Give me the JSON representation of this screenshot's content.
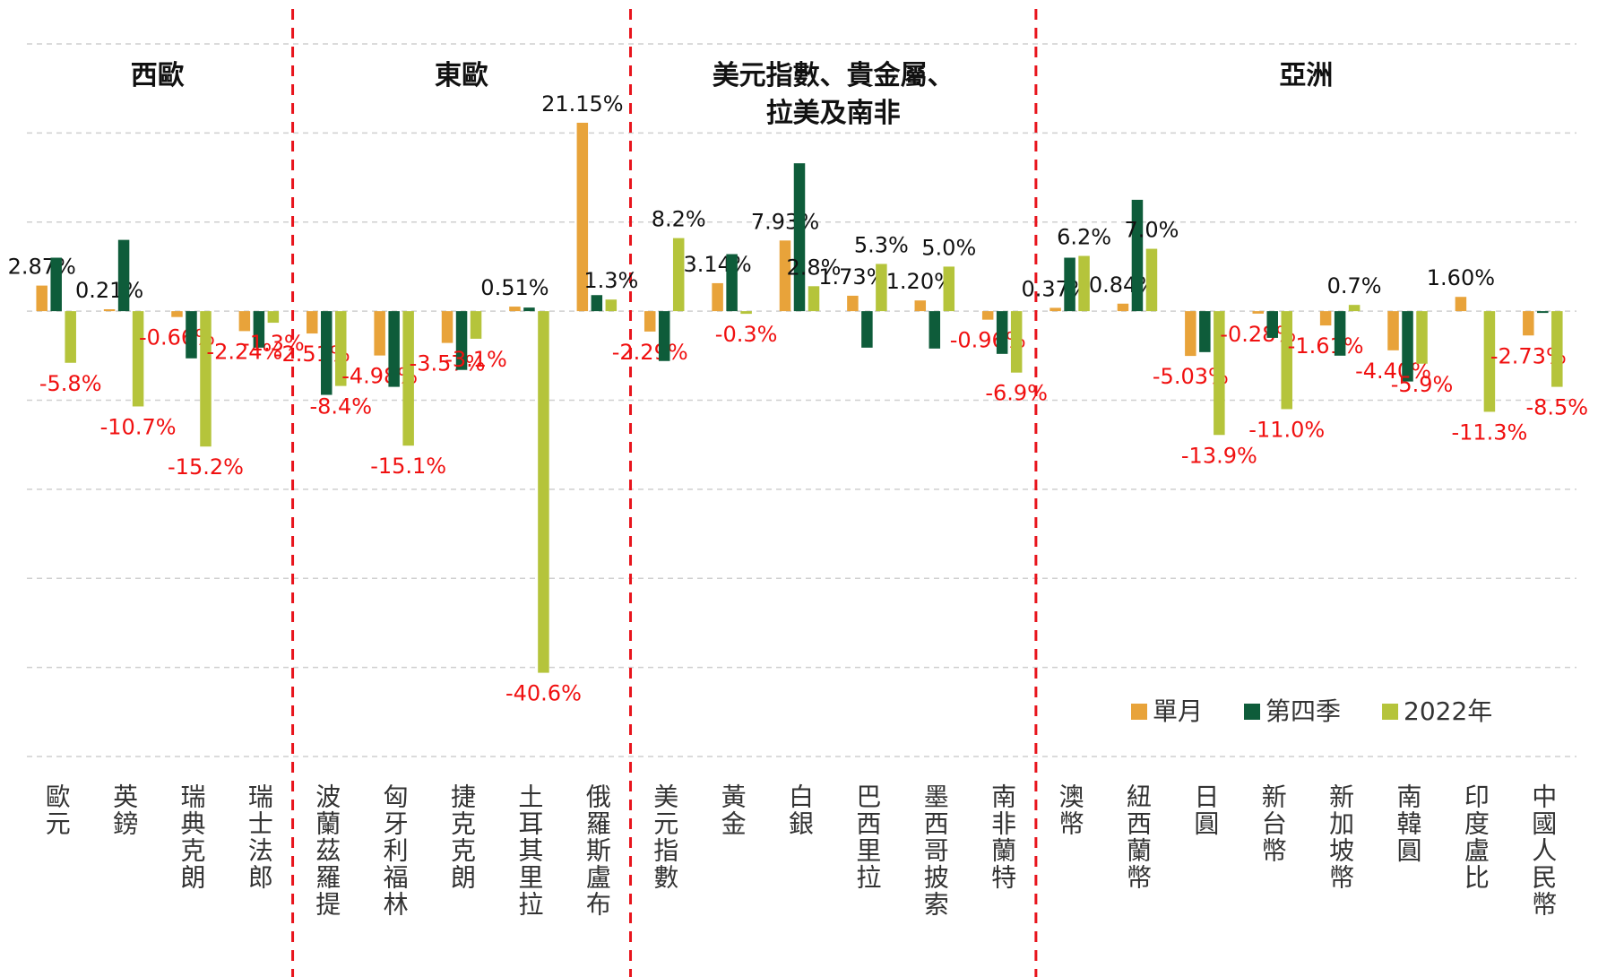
{
  "chart_data": {
    "type": "bar",
    "groups": [
      {
        "name": "西歐",
        "categories": [
          "歐元",
          "英鎊",
          "瑞典克朗",
          "瑞士法郎"
        ]
      },
      {
        "name": "東歐",
        "categories": [
          "波蘭茲羅提",
          "匈牙利福林",
          "捷克克朗",
          "土耳其里拉",
          "俄羅斯盧布"
        ]
      },
      {
        "name": "美元指數、貴金屬、\n拉美及南非",
        "categories": [
          "美元指數",
          "黃金",
          "白銀",
          "巴西里拉",
          "墨西哥披索",
          "南非蘭特"
        ]
      },
      {
        "name": "亞洲",
        "categories": [
          "澳幣",
          "紐西蘭幣",
          "日圓",
          "新台幣",
          "新加坡幣",
          "南韓圓",
          "印度盧比",
          "中國人民幣"
        ]
      }
    ],
    "series": [
      {
        "name": "單月",
        "color": "#E8A33A",
        "values": [
          2.87,
          0.21,
          -0.66,
          -2.24,
          -2.51,
          -4.98,
          -3.57,
          0.51,
          21.15,
          -2.29,
          3.14,
          7.93,
          1.73,
          1.2,
          -0.96,
          0.37,
          0.84,
          -5.03,
          -0.28,
          -1.61,
          -4.4,
          1.6,
          -2.73
        ],
        "value_labels": [
          "2.87%",
          "0.21%",
          "-0.66%",
          "-2.24%",
          "-2.51%",
          "-4.98%",
          "-3.57%",
          "0.51%",
          "21.15%",
          "-2.29%",
          "3.14%",
          "7.93%",
          "1.73%",
          "1.20%",
          "-0.96%",
          "0.37%",
          "0.84%",
          "-5.03%",
          "-0.28%",
          "-1.61%",
          "-4.40%",
          "1.60%",
          "-2.73%"
        ]
      },
      {
        "name": "第四季",
        "color": "#0E5C3A",
        "values": [
          6.0,
          8.0,
          -5.3,
          -4.1,
          -9.4,
          -8.5,
          -6.6,
          0.4,
          1.8,
          -5.6,
          6.4,
          16.6,
          -4.1,
          -4.2,
          -4.8,
          6.0,
          12.5,
          -4.6,
          -3.0,
          -5.0,
          -7.9,
          0.0,
          -0.2
        ]
      },
      {
        "name": "2022年",
        "color": "#B5C43B",
        "values": [
          -5.8,
          -10.7,
          -15.2,
          -1.3,
          -8.4,
          -15.1,
          -3.1,
          -40.6,
          1.3,
          8.2,
          -0.3,
          2.8,
          5.3,
          5.0,
          -6.9,
          6.2,
          7.0,
          -13.9,
          -11.0,
          0.7,
          -5.9,
          -11.3,
          -8.5
        ],
        "value_labels": [
          "-5.8%",
          "-10.7%",
          "-15.2%",
          "-1.3%",
          "-8.4%",
          "-15.1%",
          "-3.1%",
          "-40.6%",
          "1.3%",
          "8.2%",
          "-0.3%",
          "2.8%",
          "5.3%",
          "5.0%",
          "-6.9%",
          "6.2%",
          "7.0%",
          "-13.9%",
          "-11.0%",
          "0.7%",
          "-5.9%",
          "-11.3%",
          "-8.5%"
        ]
      }
    ],
    "ylim": [
      -50,
      30
    ],
    "yticks": [
      -50,
      -40,
      -30,
      -20,
      -10,
      0,
      10,
      20,
      30
    ],
    "grid": true,
    "legend": "bottom-right"
  }
}
